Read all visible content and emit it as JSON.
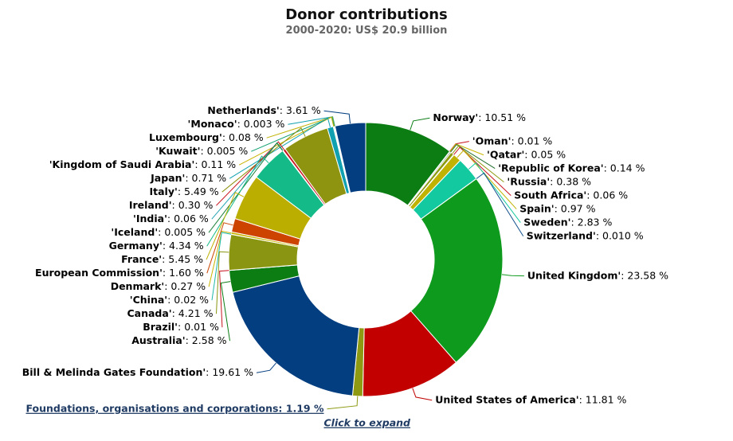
{
  "chart_data": {
    "type": "pie",
    "title": "Donor contributions",
    "subtitle": "2000-2020: US$ 20.9 billion",
    "unit": "%",
    "slices": [
      {
        "label": "Norway'",
        "value": 10.51,
        "value_text": "10.51",
        "color": "#0b7d13"
      },
      {
        "label": "'Oman'",
        "value": 0.01,
        "value_text": "0.01",
        "color": "#c8141e"
      },
      {
        "label": "'Qatar'",
        "value": 0.05,
        "value_text": "0.05",
        "color": "#c8b400"
      },
      {
        "label": "'Republic of Korea'",
        "value": 0.14,
        "value_text": "0.14",
        "color": "#1f6d2a"
      },
      {
        "label": "'Russia'",
        "value": 0.38,
        "value_text": "0.38",
        "color": "#8c9a10"
      },
      {
        "label": "South Africa'",
        "value": 0.06,
        "value_text": "0.06",
        "color": "#c8141e"
      },
      {
        "label": "Spain'",
        "value": 0.97,
        "value_text": "0.97",
        "color": "#c0b200"
      },
      {
        "label": "Sweden'",
        "value": 2.83,
        "value_text": "2.83",
        "color": "#12c9a0"
      },
      {
        "label": "Switzerland'",
        "value": 0.01,
        "value_text": "0.010",
        "color": "#104f8c"
      },
      {
        "label": "United Kingdom'",
        "value": 23.58,
        "value_text": "23.58",
        "color": "#0e9a1c"
      },
      {
        "label": "United States of America'",
        "value": 11.81,
        "value_text": "11.81",
        "color": "#c20000"
      },
      {
        "label": "Foundations, organisations and corporations",
        "value": 1.19,
        "value_text": "1.19",
        "color": "#8e9a12",
        "drilldown": true
      },
      {
        "label": "Bill & Melinda Gates Foundation'",
        "value": 19.61,
        "value_text": "19.61",
        "color": "#033e80"
      },
      {
        "label": "Australia'",
        "value": 2.58,
        "value_text": "2.58",
        "color": "#0b7d13"
      },
      {
        "label": "Brazil'",
        "value": 0.01,
        "value_text": "0.01",
        "color": "#c8141e"
      },
      {
        "label": "Canada'",
        "value": 4.21,
        "value_text": "4.21",
        "color": "#8a9611"
      },
      {
        "label": "'China'",
        "value": 0.02,
        "value_text": "0.02",
        "color": "#1db8a8"
      },
      {
        "label": "Denmark'",
        "value": 0.27,
        "value_text": "0.27",
        "color": "#c8b400"
      },
      {
        "label": "European Commission'",
        "value": 1.6,
        "value_text": "1.60",
        "color": "#cc4400"
      },
      {
        "label": "France'",
        "value": 5.45,
        "value_text": "5.45",
        "color": "#bcae00"
      },
      {
        "label": "Germany'",
        "value": 4.34,
        "value_text": "4.34",
        "color": "#14bb88"
      },
      {
        "label": "'Iceland'",
        "value": 0.005,
        "value_text": "0.005",
        "color": "#1a7f3a"
      },
      {
        "label": "'India'",
        "value": 0.06,
        "value_text": "0.06",
        "color": "#27a4b4"
      },
      {
        "label": "Ireland'",
        "value": 0.3,
        "value_text": "0.30",
        "color": "#c8141e"
      },
      {
        "label": "Italy'",
        "value": 5.49,
        "value_text": "5.49",
        "color": "#8e9410"
      },
      {
        "label": "Japan'",
        "value": 0.71,
        "value_text": "0.71",
        "color": "#10a0b0"
      },
      {
        "label": "'Kingdom of Saudi Arabia'",
        "value": 0.11,
        "value_text": "0.11",
        "color": "#c8b400"
      },
      {
        "label": "'Kuwait'",
        "value": 0.005,
        "value_text": "0.005",
        "color": "#0fa070"
      },
      {
        "label": "Luxembourg'",
        "value": 0.08,
        "value_text": "0.08",
        "color": "#c0b000"
      },
      {
        "label": "'Monaco'",
        "value": 0.003,
        "value_text": "0.003",
        "color": "#0f9fb0"
      },
      {
        "label": "Netherlands'",
        "value": 3.61,
        "value_text": "3.61",
        "color": "#033e80"
      }
    ],
    "drilldown_hint": "Click to expand",
    "legend": "none"
  }
}
